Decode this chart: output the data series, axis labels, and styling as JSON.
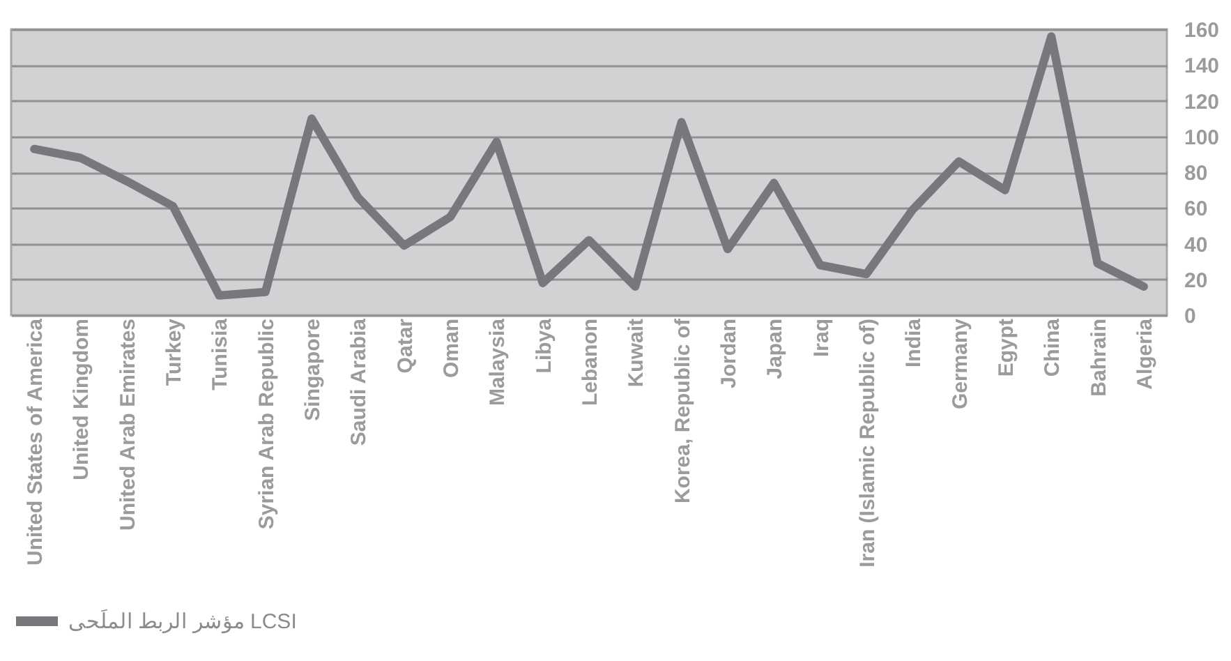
{
  "chart_data": {
    "type": "line",
    "categories": [
      "United States of America",
      "United Kingdom",
      "United Arab Emirates",
      "Turkey",
      "Tunisia",
      "Syrian Arab Republic",
      "Singapore",
      "Saudi Arabia",
      "Qatar",
      "Oman",
      "Malaysia",
      "Libya",
      "Lebanon",
      "Kuwait",
      "Korea, Republic of",
      "Jordan",
      "Japan",
      "Iraq",
      "Iran (Islamic Republic of)",
      "India",
      "Germany",
      "Egypt",
      "China",
      "Bahrain",
      "Algeria"
    ],
    "series": [
      {
        "name": "مؤشر الربط  الملَحى LCSI",
        "color": "#77787b",
        "values": [
          93,
          88,
          75,
          61,
          11,
          13,
          110,
          66,
          39,
          55,
          97,
          18,
          42,
          16,
          108,
          37,
          74,
          28,
          23,
          59,
          86,
          70,
          156,
          29,
          16
        ]
      }
    ],
    "ylim": [
      0,
      160
    ],
    "yticks": [
      0,
      20,
      40,
      60,
      80,
      100,
      120,
      140,
      160
    ],
    "grid": "y",
    "legend": "bottom"
  }
}
